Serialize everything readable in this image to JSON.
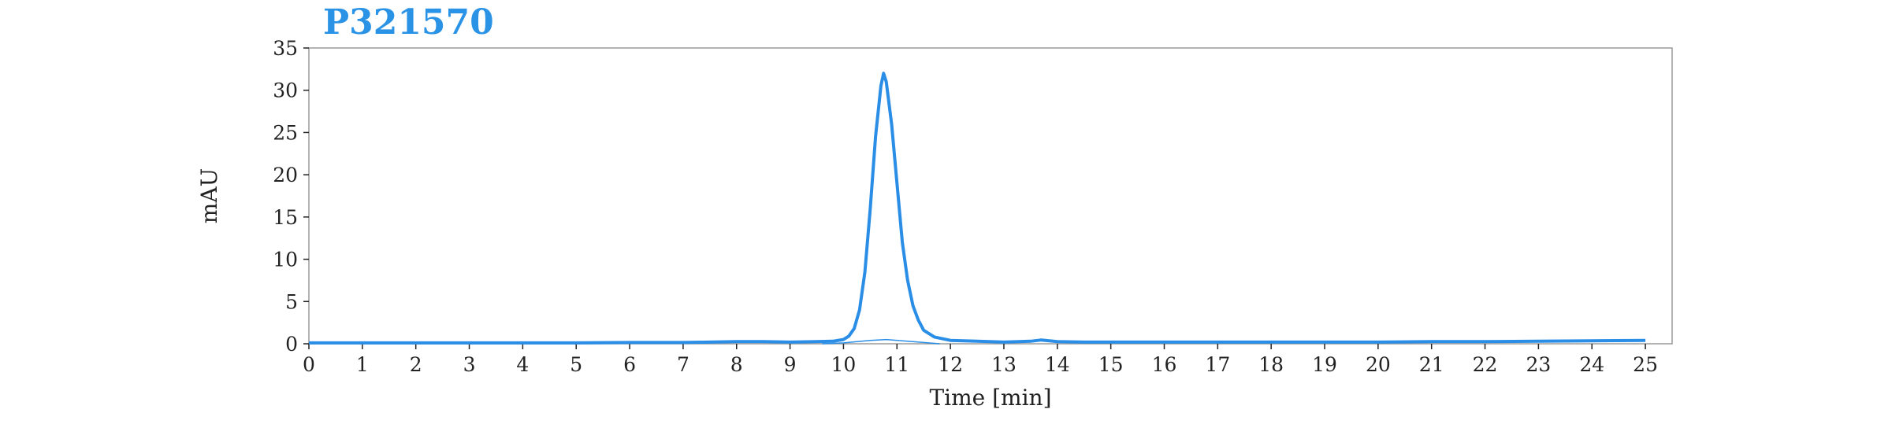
{
  "chart_data": {
    "type": "line",
    "title": "P321570",
    "xlabel": "Time [min]",
    "ylabel": "mAU",
    "xlim": [
      0,
      25.5
    ],
    "ylim": [
      0,
      35
    ],
    "x_ticks": [
      "0",
      "1",
      "2",
      "3",
      "4",
      "5",
      "6",
      "7",
      "8",
      "9",
      "10",
      "11",
      "12",
      "13",
      "14",
      "15",
      "16",
      "17",
      "18",
      "19",
      "20",
      "21",
      "22",
      "23",
      "24",
      "25"
    ],
    "y_ticks": [
      "0",
      "5",
      "10",
      "15",
      "20",
      "25",
      "30",
      "35"
    ],
    "grid": false,
    "legend": "none",
    "colors": {
      "series": "#2a8ee6",
      "title": "#2a93e6",
      "frame": "#9a9a9a"
    },
    "series": [
      {
        "x": [
          0,
          1,
          2,
          3,
          4,
          5,
          6,
          7,
          7.5,
          8,
          8.5,
          9,
          9.5,
          9.8,
          10.0,
          10.1,
          10.2,
          10.3,
          10.4,
          10.5,
          10.6,
          10.7,
          10.75,
          10.8,
          10.9,
          11.0,
          11.1,
          11.2,
          11.3,
          11.4,
          11.5,
          11.7,
          12.0,
          12.5,
          13.0,
          13.5,
          13.7,
          14.0,
          14.5,
          15,
          16,
          17,
          18,
          19,
          20,
          21,
          22,
          23,
          24,
          25
        ],
        "y": [
          0.1,
          0.1,
          0.1,
          0.1,
          0.1,
          0.1,
          0.15,
          0.15,
          0.2,
          0.25,
          0.25,
          0.2,
          0.25,
          0.3,
          0.5,
          0.9,
          1.8,
          4.0,
          8.5,
          16.0,
          24.5,
          30.5,
          32.0,
          31.0,
          26.0,
          19.0,
          12.0,
          7.5,
          4.5,
          2.8,
          1.6,
          0.8,
          0.4,
          0.3,
          0.2,
          0.3,
          0.45,
          0.25,
          0.2,
          0.2,
          0.2,
          0.2,
          0.2,
          0.2,
          0.2,
          0.25,
          0.25,
          0.3,
          0.35,
          0.4
        ]
      },
      {
        "x": [
          9.6,
          10.0,
          10.5,
          10.8,
          11.2,
          11.8
        ],
        "y": [
          0.0,
          0.1,
          0.4,
          0.5,
          0.3,
          0.0
        ]
      }
    ]
  }
}
